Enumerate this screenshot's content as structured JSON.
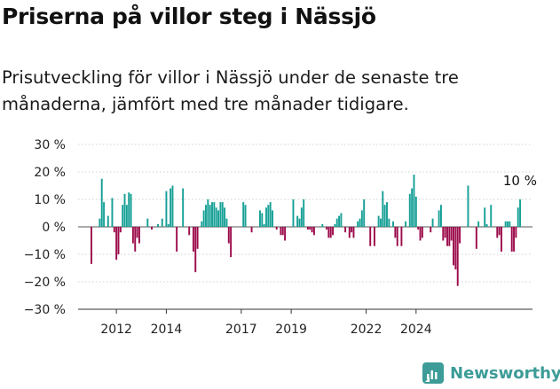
{
  "header": {
    "title": "Priserna på villor steg i Nässjö",
    "subtitle": "Prisutveckling för villor i Nässjö under de senaste tre månaderna, jämfört med tre månader tidigare."
  },
  "brand": {
    "name": "Newsworthy",
    "color": "#3d9c98"
  },
  "colors": {
    "positive": "#16a096",
    "negative": "#9c0b4b",
    "grid": "#d0d0d0",
    "zero": "#555555"
  },
  "chart_data": {
    "type": "bar",
    "title": "",
    "xlabel": "",
    "ylabel": "",
    "ylim": [
      -30,
      30
    ],
    "y_ticks": [
      30,
      20,
      10,
      0,
      -10,
      -20,
      -30
    ],
    "y_tick_labels": [
      "30 %",
      "20 %",
      "10 %",
      "0 %",
      "−10 %",
      "−20 %",
      "−30 %"
    ],
    "x_ticks": [
      "2012",
      "2014",
      "2017",
      "2019",
      "2022",
      "2024"
    ],
    "end_label": "10 %",
    "start_year": 2011,
    "values": [
      -13.5,
      0,
      0,
      0,
      3,
      17.5,
      9,
      0,
      4,
      0,
      10.5,
      -2,
      -12,
      -10,
      -2,
      8,
      12,
      8,
      12.5,
      12,
      -6,
      -9,
      -4,
      -6,
      0,
      0,
      0,
      3,
      0,
      -1,
      0,
      0,
      1,
      0,
      3,
      0,
      13,
      1,
      14,
      15,
      0,
      -9,
      0,
      0,
      14,
      0,
      0,
      -3,
      0,
      -9,
      -16.5,
      -8,
      0,
      2,
      6,
      8,
      10,
      8,
      9,
      9,
      7,
      6,
      9,
      9,
      7,
      3,
      -6,
      -11,
      0,
      0,
      0,
      0,
      0,
      9,
      8,
      0,
      0,
      -2,
      0,
      0,
      0,
      6,
      5,
      1,
      7,
      8,
      9,
      6,
      0,
      -1,
      0,
      -3,
      -3,
      -5,
      0,
      0,
      0,
      10,
      0,
      4,
      3,
      7,
      10,
      0,
      -1,
      -1,
      -2,
      -3,
      0,
      0,
      0,
      1,
      0,
      -1,
      -4,
      -4,
      -3,
      1,
      3,
      4,
      5,
      0,
      -2,
      0,
      -4,
      -2,
      -4,
      0,
      2,
      3,
      6,
      10,
      0,
      0,
      -7,
      0,
      -7,
      0,
      4,
      3,
      13,
      8,
      9,
      3,
      0,
      2,
      -4,
      -7,
      0,
      -7,
      0,
      2,
      0,
      12,
      14,
      19,
      11,
      -1,
      -5,
      -4,
      0,
      0,
      0,
      -2,
      3,
      0,
      0,
      6,
      8,
      -5,
      -4,
      -7,
      -7,
      -5,
      -14,
      -15.5,
      -21.5,
      -6,
      0,
      0,
      0,
      15,
      0,
      0,
      0,
      -8,
      2,
      0,
      0,
      7,
      1,
      0,
      8,
      0,
      0,
      -4,
      -3,
      -9,
      0,
      2,
      2,
      2,
      -9,
      -9,
      -4,
      7,
      10
    ]
  }
}
